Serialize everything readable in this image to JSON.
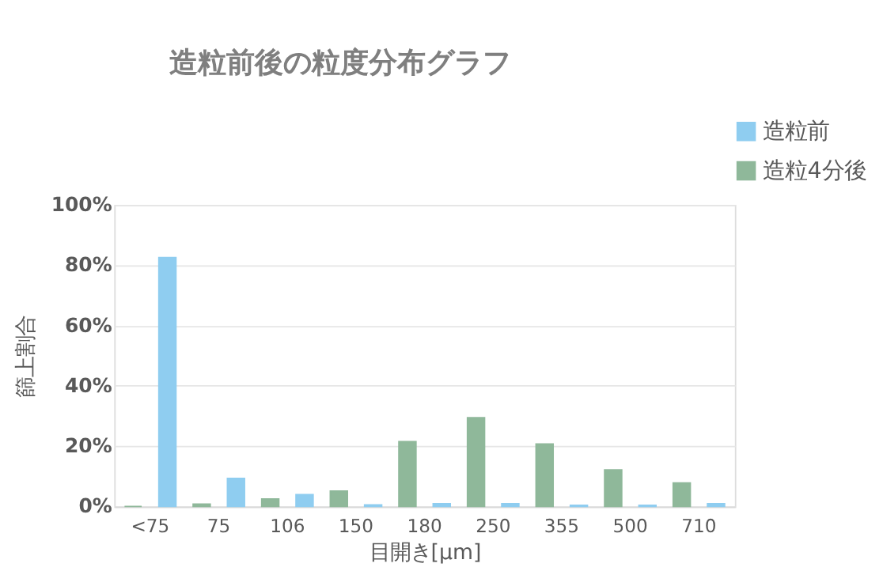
{
  "chart_data": {
    "type": "bar",
    "title": "造粒前後の粒度分布グラフ",
    "xlabel": "目開き[μm]",
    "ylabel": "篩上割合",
    "categories": [
      "<75",
      "75",
      "106",
      "150",
      "180",
      "250",
      "355",
      "500",
      "710"
    ],
    "series": [
      {
        "name": "造粒前",
        "color": "#8fcdf0",
        "values": [
          82.5,
          9.3,
          3.9,
          0.5,
          0.9,
          0.9,
          0.4,
          0.4,
          0.9
        ]
      },
      {
        "name": "造粒4分後",
        "color": "#8fb89a",
        "values": [
          0,
          0.8,
          2.5,
          5.1,
          21.5,
          29.4,
          20.7,
          12.1,
          7.8
        ]
      }
    ],
    "ylim": [
      0,
      100
    ],
    "yticks": [
      {
        "value": 0,
        "label": "0%"
      },
      {
        "value": 20,
        "label": "20%"
      },
      {
        "value": 40,
        "label": "40%"
      },
      {
        "value": 60,
        "label": "60%"
      },
      {
        "value": 80,
        "label": "80%"
      },
      {
        "value": 100,
        "label": "100%"
      }
    ],
    "grid": "y",
    "legend": "top right"
  }
}
